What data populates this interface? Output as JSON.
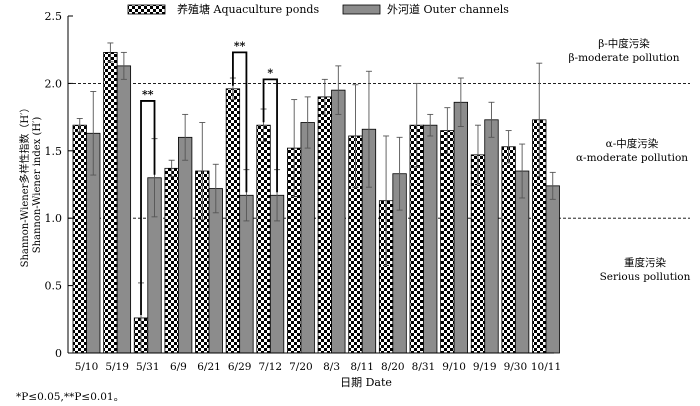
{
  "chart_data": {
    "type": "bar",
    "xlabel": "日期 Date",
    "ylabel_line1": "Shannon-Wiener多样性指数（H′）",
    "ylabel_line2": "Shannon-Wiener index (H′)",
    "ylim": [
      0,
      2.5
    ],
    "yticks": [
      "0",
      "0.5",
      "1.0",
      "1.5",
      "2.0",
      "2.5"
    ],
    "categories": [
      "5/10",
      "5/19",
      "5/31",
      "6/9",
      "6/21",
      "6/29",
      "7/12",
      "7/20",
      "8/3",
      "8/11",
      "8/20",
      "8/31",
      "9/10",
      "9/19",
      "9/30",
      "10/11"
    ],
    "series": [
      {
        "name": "养殖塘 Aquaculture ponds",
        "pattern": "checker",
        "values": [
          1.69,
          2.23,
          0.26,
          1.37,
          1.35,
          1.96,
          1.69,
          1.52,
          1.9,
          1.61,
          1.13,
          1.69,
          1.65,
          1.47,
          1.53,
          1.73
        ],
        "errors": [
          0.05,
          0.07,
          0.26,
          0.06,
          0.36,
          0.08,
          0.12,
          0.36,
          0.13,
          0.38,
          0.48,
          0.31,
          0.17,
          0.22,
          0.12,
          0.42
        ]
      },
      {
        "name": "外河道 Outer channels",
        "pattern": "gray",
        "values": [
          1.63,
          2.13,
          1.3,
          1.6,
          1.22,
          1.17,
          1.17,
          1.71,
          1.95,
          1.66,
          1.33,
          1.69,
          1.86,
          1.73,
          1.35,
          1.24
        ],
        "errors": [
          0.31,
          0.1,
          0.29,
          0.17,
          0.18,
          0.19,
          0.19,
          0.19,
          0.18,
          0.43,
          0.27,
          0.08,
          0.18,
          0.13,
          0.2,
          0.1
        ]
      }
    ],
    "reference_lines": [
      1.0,
      2.0
    ],
    "significance": [
      {
        "category_index": 2,
        "label": "**",
        "level": 1.87
      },
      {
        "category_index": 5,
        "label": "**",
        "level": 2.23
      },
      {
        "category_index": 6,
        "label": "*",
        "level": 2.03
      }
    ],
    "zones": [
      {
        "lines": [
          "β-中度污染",
          "β-moderate pollution"
        ]
      },
      {
        "lines": [
          "α-中度污染",
          "α-moderate pollution"
        ]
      },
      {
        "lines": [
          "重度污染",
          "Serious pollution"
        ]
      }
    ],
    "footnote": "*P≤0.05,**P≤0.01。",
    "colors": {
      "checker": "#000000",
      "gray": "#8c8c8c",
      "axis": "#000000"
    }
  }
}
